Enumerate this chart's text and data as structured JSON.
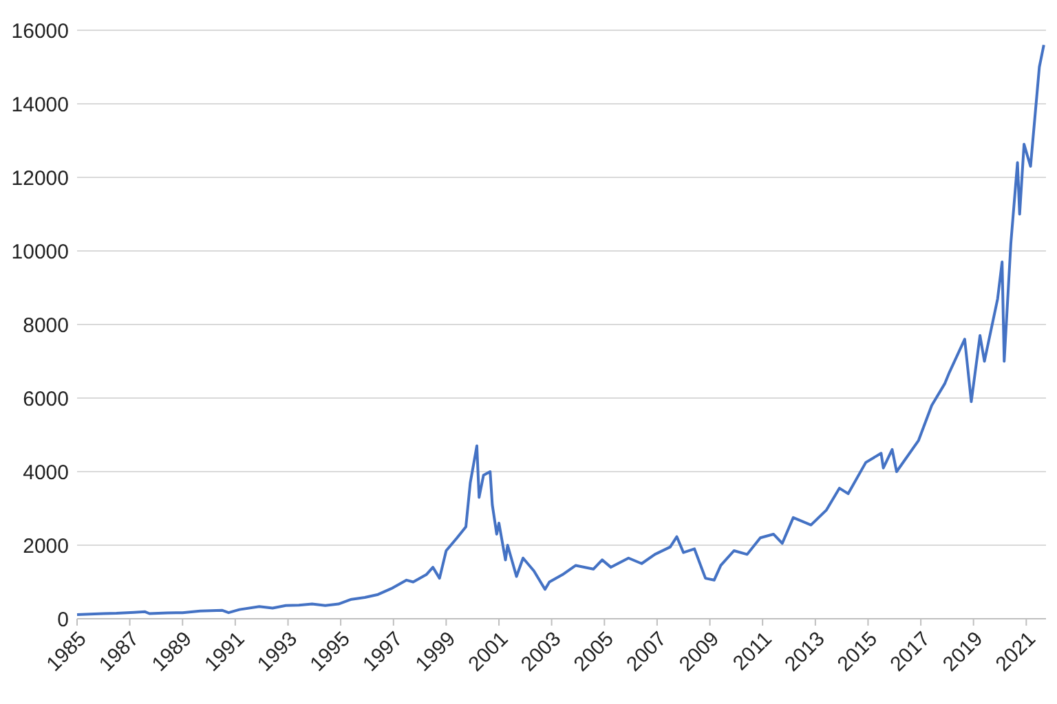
{
  "chart_data": {
    "type": "line",
    "series": [
      {
        "color": "#4472c4",
        "x": [
          "1985-01",
          "1985-07",
          "1986-01",
          "1986-07",
          "1987-03",
          "1987-08",
          "1987-10",
          "1988-06",
          "1989-01",
          "1989-09",
          "1990-07",
          "1990-10",
          "1991-03",
          "1991-12",
          "1992-06",
          "1992-12",
          "1993-06",
          "1993-12",
          "1994-06",
          "1994-12",
          "1995-06",
          "1995-12",
          "1996-06",
          "1996-12",
          "1997-07",
          "1997-10",
          "1998-04",
          "1998-07",
          "1998-10",
          "1999-01",
          "1999-06",
          "1999-10",
          "1999-12",
          "2000-03",
          "2000-04",
          "2000-06",
          "2000-09",
          "2000-10",
          "2000-12",
          "2001-01",
          "2001-04",
          "2001-05",
          "2001-09",
          "2001-12",
          "2002-05",
          "2002-10",
          "2002-12",
          "2003-06",
          "2003-12",
          "2004-08",
          "2004-12",
          "2005-04",
          "2005-12",
          "2006-06",
          "2006-12",
          "2007-07",
          "2007-10",
          "2008-01",
          "2008-06",
          "2008-11",
          "2009-03",
          "2009-06",
          "2009-12",
          "2010-06",
          "2010-12",
          "2011-06",
          "2011-10",
          "2012-03",
          "2012-11",
          "2013-06",
          "2013-12",
          "2014-04",
          "2014-12",
          "2015-07",
          "2015-08",
          "2015-12",
          "2016-02",
          "2016-12",
          "2017-06",
          "2017-12",
          "2018-02",
          "2018-09",
          "2018-12",
          "2019-04",
          "2019-06",
          "2019-12",
          "2020-02",
          "2020-03",
          "2020-06",
          "2020-09",
          "2020-10",
          "2020-12",
          "2021-03",
          "2021-07",
          "2021-09"
        ],
        "values": [
          110,
          125,
          140,
          150,
          175,
          190,
          140,
          160,
          165,
          210,
          230,
          165,
          250,
          330,
          290,
          360,
          370,
          400,
          360,
          400,
          530,
          580,
          660,
          820,
          1050,
          1000,
          1200,
          1400,
          1100,
          1850,
          2200,
          2500,
          3700,
          4700,
          3300,
          3900,
          4000,
          3100,
          2300,
          2600,
          1600,
          2000,
          1150,
          1650,
          1300,
          800,
          1000,
          1200,
          1450,
          1350,
          1600,
          1400,
          1650,
          1500,
          1750,
          1950,
          2230,
          1800,
          1900,
          1100,
          1050,
          1450,
          1850,
          1750,
          2200,
          2300,
          2050,
          2750,
          2550,
          2950,
          3550,
          3400,
          4250,
          4500,
          4100,
          4600,
          4000,
          4850,
          5800,
          6400,
          6700,
          7600,
          5900,
          7700,
          7000,
          8700,
          9700,
          7000,
          10200,
          12400,
          11000,
          12900,
          12300,
          15000,
          15600
        ]
      }
    ],
    "xlim": [
      "1985-01",
      "2021-10"
    ],
    "xticks": [
      "1985",
      "1987",
      "1989",
      "1991",
      "1993",
      "1995",
      "1997",
      "1999",
      "2001",
      "2003",
      "2005",
      "2007",
      "2009",
      "2011",
      "2013",
      "2015",
      "2017",
      "2019",
      "2021"
    ],
    "ylim": [
      0,
      16000
    ],
    "yticks": [
      0,
      2000,
      4000,
      6000,
      8000,
      10000,
      12000,
      14000,
      16000
    ],
    "grid": "y"
  }
}
